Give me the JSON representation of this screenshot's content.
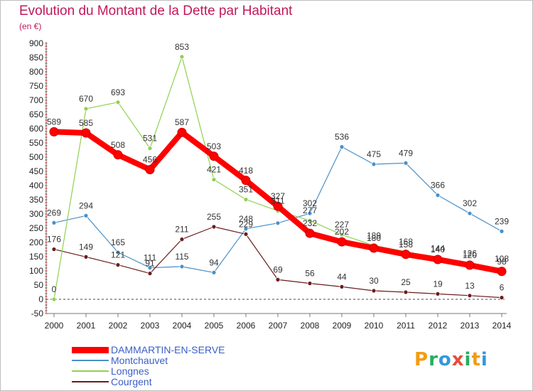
{
  "header": {
    "title": "Evolution du Montant de la Dette par Habitant",
    "unit": "(en €)"
  },
  "logo": {
    "letters": [
      "P",
      "r",
      "o",
      "x",
      "i",
      "t",
      "i"
    ],
    "colors": [
      "#f39c12",
      "#27ae60",
      "#3498db",
      "#e74c3c",
      "#27ae60",
      "#f39c12",
      "#3498db"
    ]
  },
  "chart_data": {
    "type": "line",
    "title": "Evolution du Montant de la Dette par Habitant",
    "subtitle": "(en €)",
    "xlabel": "",
    "ylabel": "",
    "x": [
      "2000",
      "2001",
      "2002",
      "2003",
      "2004",
      "2005",
      "2006",
      "2007",
      "2008",
      "2009",
      "2010",
      "2011",
      "2012",
      "2013",
      "2014"
    ],
    "ylim": [
      -50,
      900
    ],
    "yticks": [
      "-50",
      "0",
      "50",
      "100",
      "150",
      "200",
      "250",
      "300",
      "350",
      "400",
      "450",
      "500",
      "550",
      "600",
      "650",
      "700",
      "750",
      "800",
      "850",
      "900"
    ],
    "grid": false,
    "legend_position": "bottom-left",
    "series": [
      {
        "name": "Montchauvet",
        "color": "#4a90c8",
        "width": 1.2,
        "values": [
          269,
          294,
          165,
          111,
          115,
          94,
          248,
          268,
          302,
          536,
          475,
          479,
          366,
          302,
          239
        ],
        "labels": [
          "269",
          "294",
          "165",
          "111",
          "115",
          "94",
          "248",
          "",
          "302",
          "536",
          "475",
          "479",
          "366",
          "302",
          "239"
        ]
      },
      {
        "name": "Courgent",
        "color": "#6b1c1c",
        "width": 1.2,
        "values": [
          176,
          149,
          121,
          91,
          211,
          255,
          229,
          69,
          56,
          44,
          30,
          25,
          19,
          13,
          6
        ],
        "labels": [
          "176",
          "149",
          "121",
          "91",
          "211",
          "255",
          "229",
          "69",
          "56",
          "44",
          "30",
          "25",
          "19",
          "13",
          "6"
        ]
      },
      {
        "name": "Longnes",
        "color": "#8fd14f",
        "width": 1.2,
        "values": [
          0,
          670,
          693,
          531,
          853,
          421,
          351,
          311,
          277,
          227,
          189,
          168,
          144,
          126,
          108
        ],
        "labels": [
          "0",
          "670",
          "693",
          "531",
          "853",
          "421",
          "351",
          "311",
          "277",
          "227",
          "189",
          "168",
          "144",
          "126",
          "108"
        ]
      },
      {
        "name": "DAMMARTIN-EN-SERVE",
        "color": "#ff0000",
        "width": 8,
        "values": [
          589,
          585,
          508,
          456,
          587,
          503,
          418,
          327,
          232,
          202,
          180,
          158,
          140,
          120,
          98
        ],
        "labels": [
          "589",
          "585",
          "508",
          "456",
          "587",
          "503",
          "418",
          "327",
          "232",
          "202",
          "180",
          "158",
          "140",
          "120",
          "98"
        ]
      }
    ],
    "legend_order": [
      "DAMMARTIN-EN-SERVE",
      "Montchauvet",
      "Longnes",
      "Courgent"
    ]
  }
}
